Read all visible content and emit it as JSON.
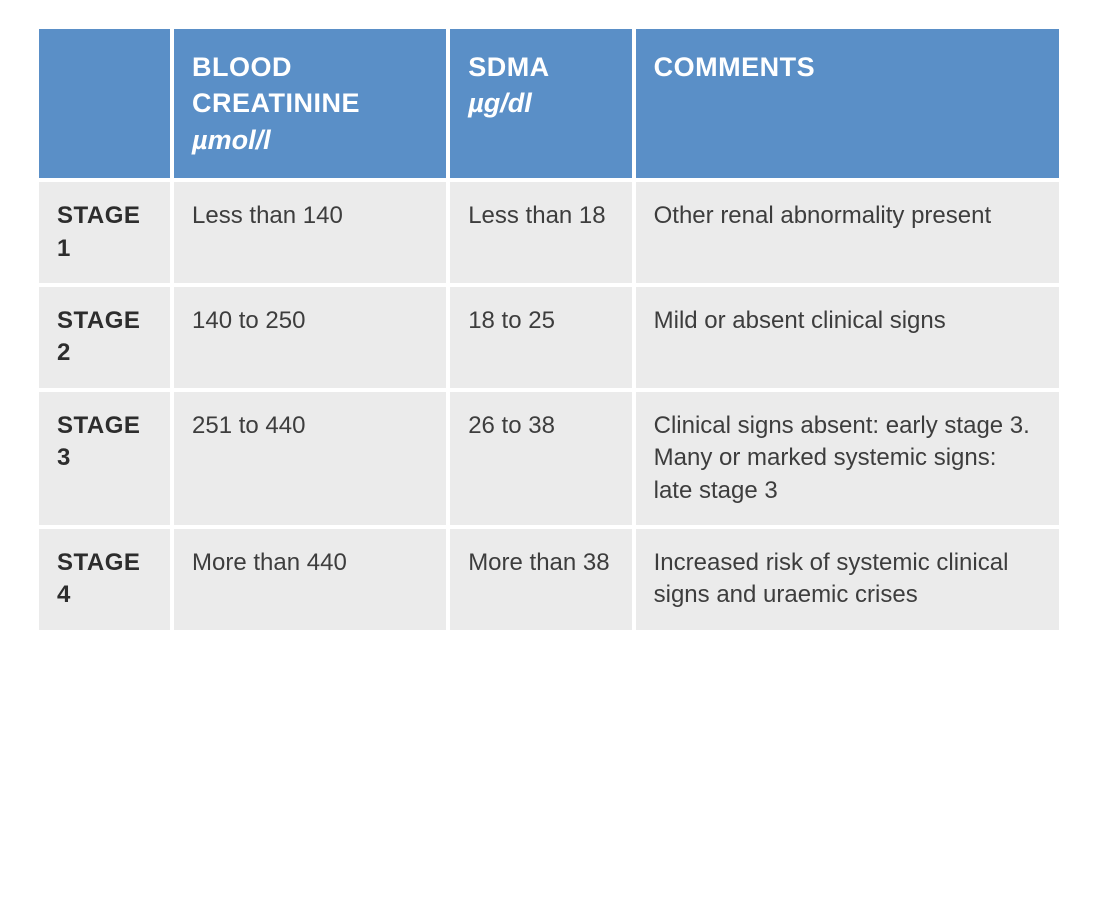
{
  "table": {
    "colors": {
      "header_bg": "#5a8fc7",
      "header_text": "#ffffff",
      "cell_bg": "#ebebeb",
      "cell_text": "#3d3d3d",
      "stage_text": "#2d2d2d",
      "page_bg": "#ffffff"
    },
    "typography": {
      "header_fontsize": 27,
      "cell_fontsize": 24,
      "font_family": "Arial, Helvetica, sans-serif"
    },
    "column_widths": [
      "13%",
      "27%",
      "18%",
      "42%"
    ],
    "headers": {
      "stage": "",
      "creatinine_main": "BLOOD CREATININE",
      "creatinine_sub": "µmol/l",
      "sdma_main": "SDMA",
      "sdma_sub": "µg/dl",
      "comments": "COMMENTS"
    },
    "rows": [
      {
        "stage": "STAGE 1",
        "creatinine": "Less than 140",
        "sdma": "Less than 18",
        "comments": "Other renal abnormality present"
      },
      {
        "stage": "STAGE 2",
        "creatinine": "140 to 250",
        "sdma": "18 to 25",
        "comments": "Mild or absent clinical signs"
      },
      {
        "stage": "STAGE 3",
        "creatinine": "251 to 440",
        "sdma": "26 to 38",
        "comments": "Clinical signs absent: early stage 3. Many or marked systemic signs: late stage 3"
      },
      {
        "stage": "STAGE 4",
        "creatinine": "More than 440",
        "sdma": "More than 38",
        "comments": "Increased risk of systemic clinical signs and uraemic crises"
      }
    ]
  }
}
